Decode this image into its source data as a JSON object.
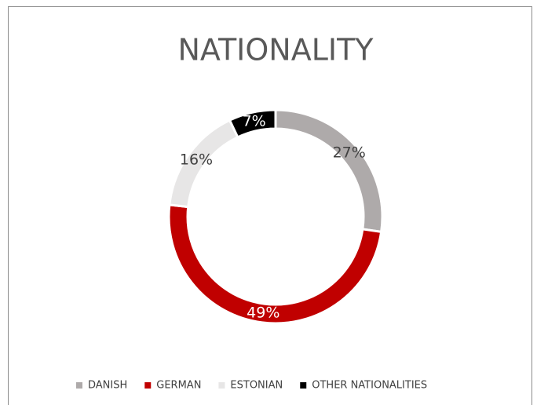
{
  "chart_data": {
    "type": "donut",
    "title": "NATIONALITY",
    "categories": [
      "DANISH",
      "GERMAN",
      "ESTONIAN",
      "OTHER NATIONALITIES"
    ],
    "values": [
      27,
      49,
      16,
      7
    ],
    "value_labels": [
      "27%",
      "49%",
      "16%",
      "7%"
    ],
    "colors": [
      "#aeaaaa",
      "#c00000",
      "#e7e6e6",
      "#000000"
    ],
    "legend": "bottom"
  }
}
